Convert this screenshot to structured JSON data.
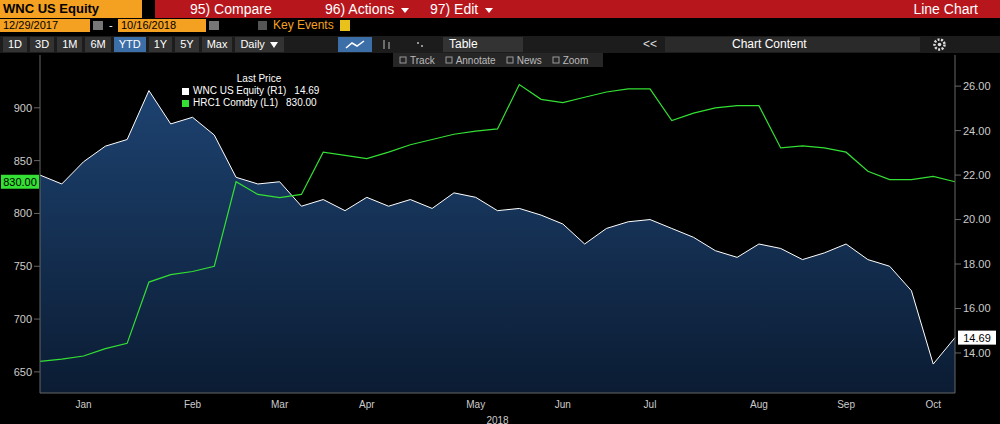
{
  "header": {
    "ticker": "WNC US Equity",
    "menu": [
      "95) Compare",
      "96) Actions",
      "97) Edit"
    ],
    "view": "Line Chart",
    "start_date": "12/29/2017",
    "date_separator": "-",
    "end_date": "10/16/2018",
    "key_events": "Key Events"
  },
  "toolbar": {
    "periods": [
      "1D",
      "3D",
      "1M",
      "6M",
      "YTD",
      "1Y",
      "5Y",
      "Max"
    ],
    "selected": "YTD",
    "frequency": "Daily",
    "table": "Table",
    "collapse": "<<",
    "chart_content": "Chart Content",
    "tools": [
      "Track",
      "Annotate",
      "News",
      "Zoom"
    ]
  },
  "chart_data": {
    "type": "line",
    "x_label": "2018",
    "legend": "upper left",
    "legend_title": "Last Price",
    "grid": false,
    "categories": [
      null,
      null,
      "Jan",
      null,
      null,
      null,
      null,
      "Feb",
      null,
      null,
      null,
      "Mar",
      null,
      null,
      null,
      "Apr",
      null,
      null,
      null,
      null,
      "May",
      null,
      null,
      null,
      "Jun",
      null,
      null,
      null,
      "Jul",
      null,
      null,
      null,
      null,
      "Aug",
      null,
      null,
      null,
      "Sep",
      null,
      null,
      null,
      "Oct",
      null
    ],
    "ylim": [
      630,
      950
    ],
    "yticks": [
      650,
      700,
      750,
      800,
      850,
      900
    ],
    "y2lim": [
      12.2,
      27.4
    ],
    "y2ticks": [
      {
        "value": 14,
        "label": "14.00"
      },
      {
        "value": 16,
        "label": "16.00"
      },
      {
        "value": 18,
        "label": "18.00"
      },
      {
        "value": 20,
        "label": "20.00"
      },
      {
        "value": 22,
        "label": "22.00"
      },
      {
        "value": 24,
        "label": "24.00"
      },
      {
        "value": 26,
        "label": "26.00"
      }
    ],
    "series": [
      {
        "name": "WNC US Equity (R1)",
        "axis": "y2",
        "type": "area",
        "color": "#ffffff",
        "last_price_label": "14.69",
        "values": [
          22.0,
          21.6,
          22.6,
          23.3,
          23.6,
          25.8,
          24.3,
          24.6,
          23.8,
          21.9,
          21.6,
          21.7,
          20.6,
          20.9,
          20.4,
          21.0,
          20.6,
          20.9,
          20.5,
          21.2,
          21.0,
          20.4,
          20.5,
          20.2,
          19.8,
          18.9,
          19.6,
          19.9,
          20.0,
          19.6,
          19.2,
          18.6,
          18.3,
          18.9,
          18.7,
          18.2,
          18.5,
          18.9,
          18.2,
          17.9,
          16.8,
          13.5,
          14.69
        ]
      },
      {
        "name": "HRC1 Comdty (L1)",
        "axis": "y",
        "type": "line",
        "color": "#33e033",
        "last_price_label": "830.00",
        "values": [
          660,
          662,
          665,
          672,
          677,
          735,
          742,
          745,
          750,
          830,
          818,
          815,
          818,
          858,
          855,
          852,
          858,
          865,
          870,
          875,
          878,
          880,
          922,
          908,
          905,
          910,
          915,
          918,
          918,
          888,
          895,
          900,
          902,
          902,
          862,
          864,
          862,
          858,
          840,
          832,
          832,
          835,
          830
        ]
      }
    ]
  }
}
